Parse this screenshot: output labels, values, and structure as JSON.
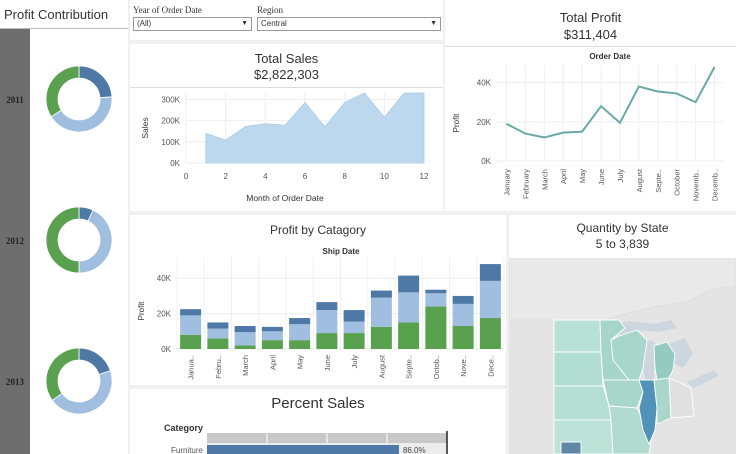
{
  "colors": {
    "dark_blue": "#4e79a7",
    "light_blue": "#a0bfe0",
    "green": "#59a14f",
    "area_fill": "#bcd8ef",
    "line_teal": "#6aa9a7",
    "sidebar_gray": "#6e6e6e"
  },
  "sidebar": {
    "title": "Profit Contribution",
    "donuts": [
      {
        "year": "2011",
        "segments": [
          0.24,
          0.42,
          0.34
        ]
      },
      {
        "year": "2012",
        "segments": [
          0.07,
          0.43,
          0.5
        ]
      },
      {
        "year": "2013",
        "segments": [
          0.2,
          0.45,
          0.35
        ]
      }
    ]
  },
  "filters": {
    "year": {
      "label": "Year of Order Date",
      "value": "(All)"
    },
    "region": {
      "label": "Region",
      "value": "Central"
    }
  },
  "total_sales": {
    "title": "Total Sales",
    "value": "$2,822,303"
  },
  "total_profit": {
    "title": "Total Profit",
    "value": "$311,404"
  },
  "profit_by_category": {
    "title": "Profit by Catagory"
  },
  "quantity_by_state": {
    "title": "Quantity by State",
    "range": "5 to 3,839"
  },
  "percent_sales": {
    "title": "Percent Sales",
    "header": "Category"
  },
  "chart_data": [
    {
      "type": "area",
      "xlabel": "Month of Order Date",
      "ylabel": "Sales",
      "x": [
        1,
        2,
        3,
        4,
        5,
        6,
        7,
        8,
        9,
        10,
        11,
        12
      ],
      "values": [
        140000,
        108000,
        172000,
        185000,
        178000,
        285000,
        170000,
        285000,
        355000,
        215000,
        375000,
        375000
      ],
      "xlim": [
        0,
        12
      ],
      "ylim": [
        0,
        330000
      ],
      "xticks": [
        "0",
        "2",
        "4",
        "6",
        "8",
        "10",
        "12"
      ],
      "yticks": [
        "0K",
        "100K",
        "200K",
        "300K"
      ],
      "ytick_values": [
        0,
        100000,
        200000,
        300000
      ]
    },
    {
      "type": "line",
      "title": "Order Date",
      "ylabel": "Profit",
      "categories": [
        "January",
        "February",
        "March",
        "April",
        "May",
        "June",
        "July",
        "August",
        "Septe..",
        "October",
        "Novemb..",
        "Decemb.."
      ],
      "values": [
        19000,
        14000,
        12000,
        14500,
        15000,
        28000,
        19500,
        38000,
        35500,
        34500,
        30000,
        48000
      ],
      "ylim": [
        0,
        48000
      ],
      "yticks": [
        "0K",
        "20K",
        "40K"
      ],
      "ytick_values": [
        0,
        20000,
        40000
      ]
    },
    {
      "type": "bar",
      "title": "Ship Date",
      "ylabel": "Profit",
      "categories": [
        "Janua..",
        "Febru..",
        "March",
        "April",
        "May",
        "June",
        "July",
        "August",
        "Septe..",
        "Octob..",
        "Nove..",
        "Dece.."
      ],
      "series": [
        {
          "values": [
            8000,
            6000,
            2000,
            5000,
            5000,
            9000,
            9000,
            12500,
            15000,
            24000,
            13000,
            17500
          ]
        },
        {
          "values": [
            11000,
            5500,
            7500,
            5000,
            9000,
            13000,
            6500,
            16500,
            17000,
            7500,
            12500,
            21000
          ]
        },
        {
          "values": [
            3500,
            3500,
            3500,
            2500,
            3500,
            4500,
            6500,
            4000,
            9500,
            2000,
            4500,
            9500
          ]
        }
      ],
      "ylim": [
        0,
        52000
      ],
      "yticks": [
        "0K",
        "20K",
        "40K"
      ],
      "ytick_values": [
        0,
        20000,
        40000
      ]
    },
    {
      "type": "bar",
      "categories": [
        "Furniture"
      ],
      "values": [
        86.0
      ],
      "labels": [
        "86.0%"
      ]
    }
  ]
}
